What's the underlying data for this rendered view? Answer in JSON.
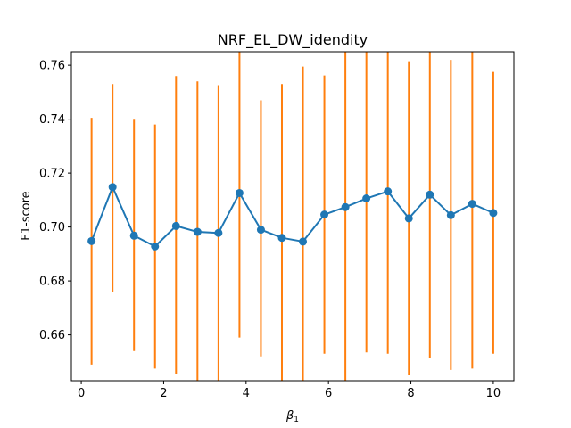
{
  "chart_data": {
    "type": "line",
    "title": "NRF_EL_DW_idendity",
    "xlabel": "β",
    "xlabel_sub": "1",
    "ylabel": "F1-score",
    "xlim": [
      -0.24,
      10.5
    ],
    "ylim": [
      0.643,
      0.765
    ],
    "xticks": [
      0,
      2,
      4,
      6,
      8,
      10
    ],
    "yticks": [
      0.66,
      0.68,
      0.7,
      0.72,
      0.74,
      0.76
    ],
    "ytick_labels": [
      "0.66",
      "0.68",
      "0.70",
      "0.72",
      "0.74",
      "0.76"
    ],
    "grid": false,
    "colors": {
      "line": "#1f77b4",
      "errorbar": "#ff7f0e"
    },
    "series": [
      {
        "x": [
          0.25,
          0.76,
          1.28,
          1.79,
          2.3,
          2.82,
          3.33,
          3.84,
          4.36,
          4.87,
          5.38,
          5.9,
          6.41,
          6.92,
          7.44,
          7.95,
          8.46,
          8.97,
          9.49,
          10.0
        ],
        "y": [
          0.6948,
          0.7148,
          0.6968,
          0.6928,
          0.7004,
          0.6982,
          0.6978,
          0.7126,
          0.699,
          0.696,
          0.6946,
          0.7046,
          0.7074,
          0.7106,
          0.7132,
          0.7032,
          0.712,
          0.7044,
          0.7086,
          0.7052
        ],
        "err_low": [
          0.649,
          0.676,
          0.654,
          0.6475,
          0.6455,
          0.643,
          0.643,
          0.659,
          0.652,
          0.643,
          0.643,
          0.653,
          0.643,
          0.6535,
          0.653,
          0.645,
          0.6515,
          0.647,
          0.6475,
          0.653
        ],
        "err_high": [
          0.7405,
          0.753,
          0.7398,
          0.738,
          0.756,
          0.754,
          0.7526,
          0.765,
          0.747,
          0.753,
          0.7595,
          0.7562,
          0.765,
          0.765,
          0.765,
          0.7615,
          0.765,
          0.762,
          0.765,
          0.7575
        ]
      }
    ]
  }
}
